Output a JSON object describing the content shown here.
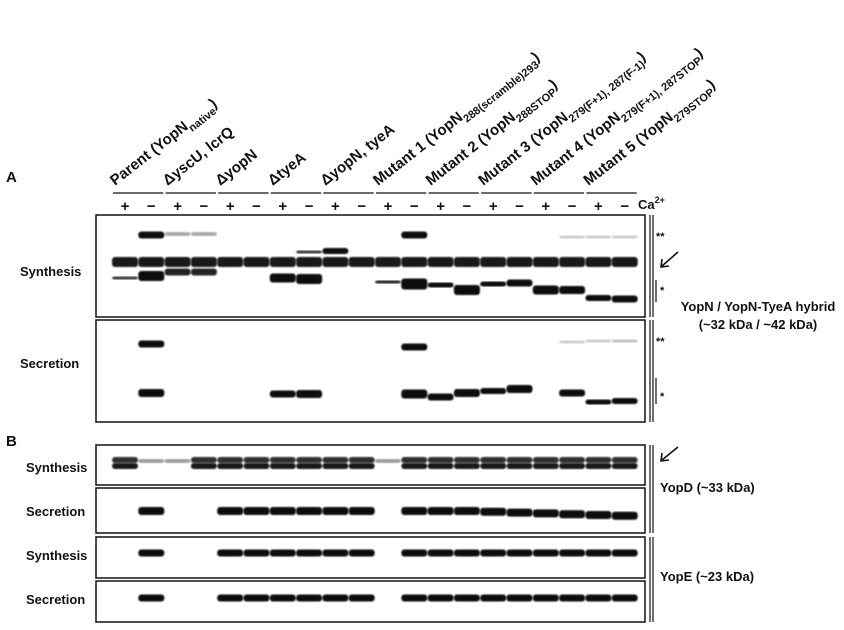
{
  "panel_a": {
    "label": "A",
    "headers": [
      {
        "text": "Parent (YopN",
        "sub": "native",
        "tail": ")"
      },
      {
        "text": "ΔyscU, lcrQ"
      },
      {
        "text": "ΔyopN"
      },
      {
        "text": "ΔtyeA"
      },
      {
        "text": "ΔyopN, tyeA"
      },
      {
        "text": "Mutant 1 (YopN",
        "sub": "288(scramble)293",
        "tail": ")"
      },
      {
        "text": "Mutant 2 (YopN",
        "sub": "288STOP",
        "tail": ")"
      },
      {
        "text": "Mutant 3 (YopN",
        "sub": "279(F+1), 287(F-1)",
        "tail": ")"
      },
      {
        "text": "Mutant 4 (YopN",
        "sub": "279(F+1), 287STOP",
        "tail": ")"
      },
      {
        "text": "Mutant 5 (YopN",
        "sub": "279STOP",
        "tail": ")"
      }
    ],
    "signs": [
      "+",
      "−",
      "+",
      "−",
      "+",
      "−",
      "+",
      "−",
      "+",
      "−",
      "+",
      "−",
      "+",
      "−",
      "+",
      "−",
      "+",
      "−",
      "+",
      "−"
    ],
    "ca": {
      "text": "Ca",
      "sup": "2+"
    },
    "rows": [
      "Synthesis",
      "Secretion"
    ],
    "markers": [
      "**",
      "*",
      "**",
      "*"
    ],
    "protein": [
      "YopN / YopN-TyeA hybrid",
      "(~32 kDa / ~42 kDa)"
    ]
  },
  "panel_b": {
    "label": "B",
    "rows": [
      "Synthesis",
      "Secretion",
      "Synthesis",
      "Secretion"
    ],
    "proteins": [
      "YopD (~33 kDa)",
      "YopE (~23 kDa)"
    ]
  }
}
